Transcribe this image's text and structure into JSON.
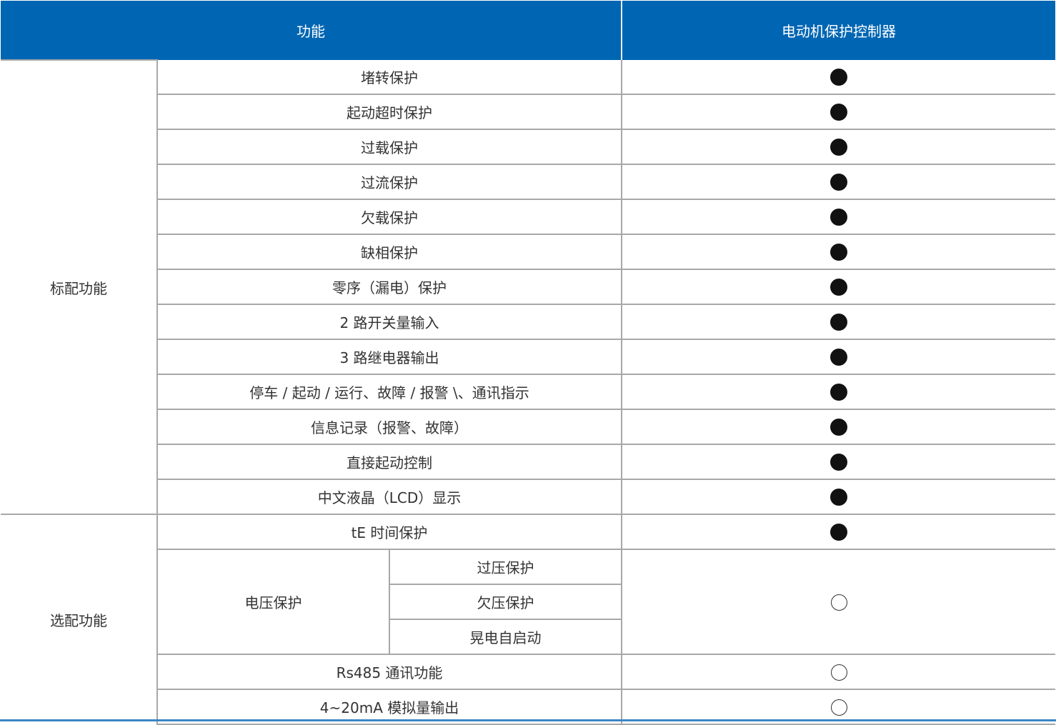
{
  "colors": {
    "header_bg": "#0066b3",
    "bottom_rule": "#3d86c6"
  },
  "header": {
    "function": "功能",
    "product": "电动机保护控制器"
  },
  "legend": {
    "filled-circle": "standard",
    "open-circle": "optional"
  },
  "groups": [
    {
      "label": "标配功能",
      "rows": [
        {
          "name": "堵转保护",
          "mark": "filled-circle"
        },
        {
          "name": "起动超时保护",
          "mark": "filled-circle"
        },
        {
          "name": "过载保护",
          "mark": "filled-circle"
        },
        {
          "name": "过流保护",
          "mark": "filled-circle"
        },
        {
          "name": "欠载保护",
          "mark": "filled-circle"
        },
        {
          "name": "缺相保护",
          "mark": "filled-circle"
        },
        {
          "name": "零序（漏电）保护",
          "mark": "filled-circle"
        },
        {
          "name": "2 路开关量输入",
          "mark": "filled-circle"
        },
        {
          "name": "3 路继电器输出",
          "mark": "filled-circle"
        },
        {
          "name": "停车 / 起动 / 运行、故障 / 报警 \\、通讯指示",
          "mark": "filled-circle"
        },
        {
          "name": "信息记录（报警、故障）",
          "mark": "filled-circle"
        },
        {
          "name": "直接起动控制",
          "mark": "filled-circle"
        },
        {
          "name": "中文液晶（LCD）显示",
          "mark": "filled-circle"
        }
      ]
    },
    {
      "label": "选配功能",
      "rows": [
        {
          "name": "tE 时间保护",
          "mark": "filled-circle"
        },
        {
          "name": "电压保护",
          "sub": [
            "过压保护",
            "欠压保护",
            "晃电自启动"
          ],
          "mark": "open-circle"
        },
        {
          "name": "Rs485 通讯功能",
          "mark": "open-circle"
        },
        {
          "name": "4~20mA 模拟量输出",
          "mark": "open-circle"
        }
      ]
    }
  ]
}
